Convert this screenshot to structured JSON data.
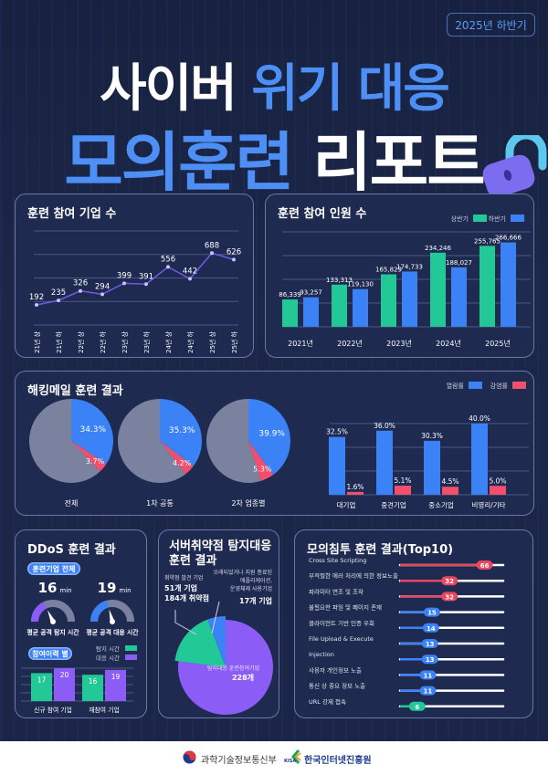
{
  "header": {
    "period_badge": "2025년 하반기",
    "title_line1_white": "사이버",
    "title_line1_blue": "위기 대응",
    "title_line2_blue": "모의훈련",
    "title_line2_white": "리포트"
  },
  "panels": {
    "companies": "훈련 참여 기업 수",
    "people": "훈련 참여 인원 수",
    "phishing": "해킹메일 훈련 결과",
    "ddos": "DDoS 훈련 결과",
    "server_line1": "서버취약점 탐지대응",
    "server_line2": "훈련 결과",
    "pentest": "모의침투 훈련 결과(Top10)"
  },
  "colors": {
    "bg": "#1a2446",
    "green": "#22c997",
    "blue": "#3b82f6",
    "red": "#f0506e",
    "purple": "#8b5cf6",
    "gray": "#7a82a0",
    "line": "#6e5ce6"
  },
  "chart_data": [
    {
      "id": "companies",
      "type": "line",
      "categories": [
        "21년 상",
        "21년 하",
        "22년 상",
        "22년 하",
        "23년 상",
        "23년 하",
        "24년 상",
        "24년 하",
        "25년 상",
        "25년 하"
      ],
      "values": [
        192,
        235,
        326,
        294,
        399,
        391,
        556,
        442,
        688,
        626
      ],
      "ylim": [
        0,
        900
      ],
      "grid": true
    },
    {
      "id": "people",
      "type": "bar",
      "categories": [
        "2021년",
        "2022년",
        "2023년",
        "2024년",
        "2025년"
      ],
      "legend": "top-right",
      "series": [
        {
          "name": "상반기",
          "values": [
            86339,
            133313,
            165829,
            234246,
            255765
          ]
        },
        {
          "name": "하반기",
          "values": [
            93257,
            119130,
            174733,
            188027,
            266666
          ]
        }
      ],
      "ylim": [
        0,
        300000
      ],
      "grid": true
    },
    {
      "id": "phishing_pies",
      "type": "pie",
      "categories": [
        "전체",
        "1차 공통",
        "2차 업종별"
      ],
      "series": [
        {
          "name": "열람률",
          "values": [
            34.3,
            35.3,
            39.9
          ]
        },
        {
          "name": "감염률",
          "values": [
            3.7,
            4.2,
            5.3
          ]
        }
      ]
    },
    {
      "id": "phishing_bar",
      "type": "bar",
      "categories": [
        "대기업",
        "중견기업",
        "중소기업",
        "비영리/기타"
      ],
      "legend": "top-right",
      "series": [
        {
          "name": "열람률",
          "values": [
            32.5,
            36.0,
            30.3,
            40.0
          ]
        },
        {
          "name": "감염률",
          "values": [
            1.6,
            5.1,
            4.5,
            5.0
          ]
        }
      ],
      "ylim": [
        0,
        40
      ],
      "grid": true
    },
    {
      "id": "ddos_gauges",
      "type": "gauge",
      "section_label": "훈련기업 전체",
      "unit": "min",
      "items": [
        {
          "label": "평균 공격 탐지 시간",
          "value": 16,
          "fill": 0.36
        },
        {
          "label": "평균 공격 대응 시간",
          "value": 19,
          "fill": 0.42
        }
      ]
    },
    {
      "id": "ddos_bar",
      "type": "bar",
      "section_label": "참여이력 별",
      "categories": [
        "신규 참여 기업",
        "재참여 기업"
      ],
      "series": [
        {
          "name": "탐지 시간",
          "values": [
            17,
            16
          ]
        },
        {
          "name": "대응 시간",
          "values": [
            20,
            19
          ]
        }
      ],
      "ylim": [
        0,
        20
      ],
      "grid": true
    },
    {
      "id": "server_pie",
      "type": "pie",
      "slices": [
        {
          "label": "탐지대응 훈련참여기업",
          "value": 228,
          "value_label": "228개"
        },
        {
          "label": "취약점 발견 기업",
          "value": 51,
          "value_label": "51개 기업",
          "extra": "184개 취약점"
        },
        {
          "label_lines": [
            "오래되었거나 지원 종료된",
            "애플리케이션,",
            "운영체제 사용기업"
          ],
          "value": 17,
          "value_label": "17개 기업"
        }
      ]
    },
    {
      "id": "pentest",
      "type": "bar",
      "orientation": "horizontal",
      "categories": [
        "Cross Site Scripting",
        "부적절한 에러 처리에 의한 정보노출",
        "파라미터 변조 및 조작",
        "불필요한 파일 및 페이지 존재",
        "클라이언트 기반 인증 우회",
        "File Upload & Execute",
        "Injection",
        "사용자 개인정보 노출",
        "통신 상 중요 정보 노출",
        "URL 강제 접속"
      ],
      "values": [
        66,
        32,
        32,
        15,
        14,
        13,
        13,
        11,
        11,
        6
      ]
    }
  ],
  "footer": {
    "ministry": "과학기술정보통신부",
    "kisa_mark": "KISA",
    "kisa": "한국인터넷진흥원"
  }
}
